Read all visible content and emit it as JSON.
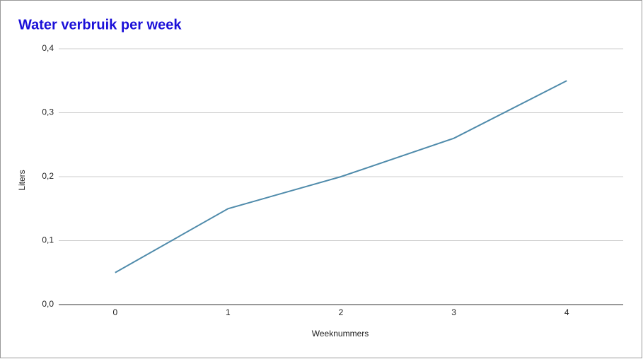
{
  "chart_data": {
    "type": "line",
    "title": "Water verbruik per week",
    "x_label": "Weeknummers",
    "y_label": "Liters",
    "x": [
      0,
      1,
      2,
      3,
      4
    ],
    "series": [
      {
        "name": "Liters",
        "color": "#4f8bab",
        "values": [
          0.05,
          0.15,
          0.2,
          0.26,
          0.35
        ]
      }
    ],
    "xlim": [
      -0.5,
      4.5
    ],
    "xticks": [
      0,
      1,
      2,
      3,
      4
    ],
    "ylim": [
      0,
      0.4
    ],
    "yticks": [
      {
        "value": 0,
        "label": "0,0"
      },
      {
        "value": 0.1,
        "label": "0,1"
      },
      {
        "value": 0.2,
        "label": "0,2"
      },
      {
        "value": 0.3,
        "label": "0,3"
      },
      {
        "value": 0.4,
        "label": "0,4"
      }
    ],
    "grid": true
  }
}
